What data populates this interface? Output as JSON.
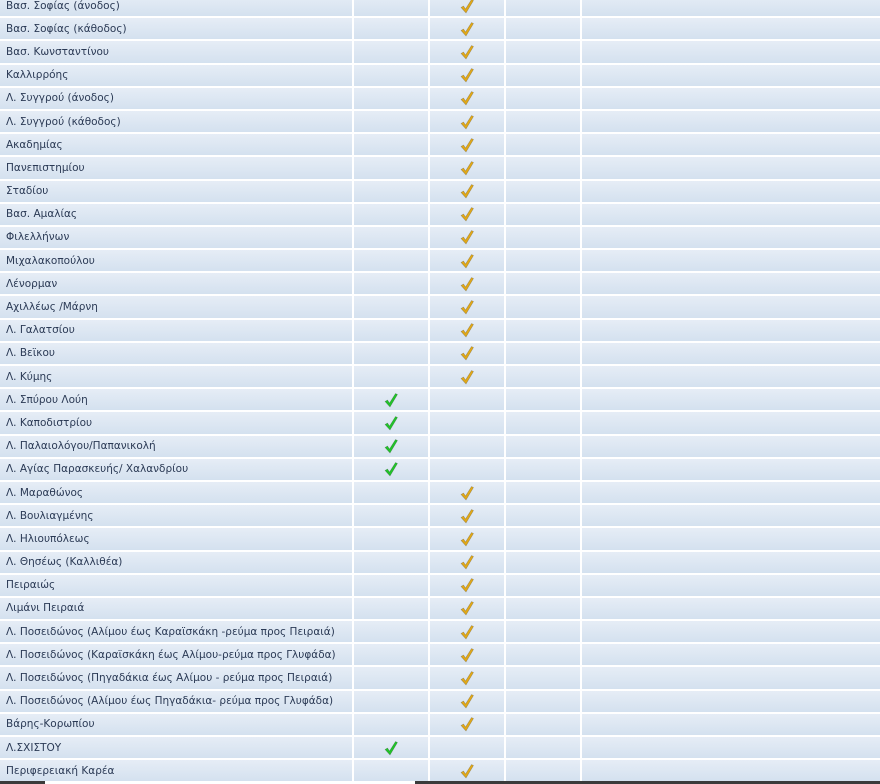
{
  "colors": {
    "green_check": "#22c32a",
    "yellow_check": "#e0a81a"
  },
  "rows": [
    {
      "name": "Βασ. Σοφίας (άνοδος)",
      "check": "yellow"
    },
    {
      "name": "Βασ. Σοφίας (κάθοδος)",
      "check": "yellow"
    },
    {
      "name": "Βασ. Κωνσταντίνου",
      "check": "yellow"
    },
    {
      "name": "Καλλιρρόης",
      "check": "yellow"
    },
    {
      "name": "Λ. Συγγρού (άνοδος)",
      "check": "yellow"
    },
    {
      "name": "Λ. Συγγρού (κάθοδος)",
      "check": "yellow"
    },
    {
      "name": "Ακαδημίας",
      "check": "yellow"
    },
    {
      "name": "Πανεπιστημίου",
      "check": "yellow"
    },
    {
      "name": "Σταδίου",
      "check": "yellow"
    },
    {
      "name": "Βασ. Αμαλίας",
      "check": "yellow"
    },
    {
      "name": "Φιλελλήνων",
      "check": "yellow"
    },
    {
      "name": "Μιχαλακοπούλου",
      "check": "yellow"
    },
    {
      "name": "Λένορμαν",
      "check": "yellow"
    },
    {
      "name": "Αχιλλέως /Μάρνη",
      "check": "yellow"
    },
    {
      "name": "Λ. Γαλατσίου",
      "check": "yellow"
    },
    {
      "name": "Λ. Βεϊκου",
      "check": "yellow"
    },
    {
      "name": "Λ. Κύμης",
      "check": "yellow"
    },
    {
      "name": "Λ. Σπύρου Λούη",
      "check": "green"
    },
    {
      "name": "Λ. Καποδιστρίου",
      "check": "green"
    },
    {
      "name": "Λ. Παλαιολόγου/Παπανικολή",
      "check": "green"
    },
    {
      "name": "Λ. Αγίας Παρασκευής/ Χαλανδρίου",
      "check": "green"
    },
    {
      "name": "Λ. Μαραθώνος",
      "check": "yellow"
    },
    {
      "name": "Λ. Βουλιαγμένης",
      "check": "yellow"
    },
    {
      "name": "Λ. Ηλιουπόλεως",
      "check": "yellow"
    },
    {
      "name": "Λ. Θησέως (Καλλιθέα)",
      "check": "yellow"
    },
    {
      "name": "Πειραιώς",
      "check": "yellow"
    },
    {
      "name": "Λιμάνι Πειραιά",
      "check": "yellow"
    },
    {
      "name": "Λ. Ποσειδώνος (Αλίμου έως Καραϊσκάκη -ρεύμα προς Πειραιά)",
      "check": "yellow"
    },
    {
      "name": "Λ. Ποσειδώνος (Καραϊσκάκη έως Αλίμου-ρεύμα προς Γλυφάδα)",
      "check": "yellow"
    },
    {
      "name": "Λ. Ποσειδώνος (Πηγαδάκια έως Αλίμου - ρεύμα προς Πειραιά)",
      "check": "yellow"
    },
    {
      "name": "Λ. Ποσειδώνος (Αλίμου έως Πηγαδάκια- ρεύμα προς Γλυφάδα)",
      "check": "yellow"
    },
    {
      "name": "Βάρης-Κορωπίου",
      "check": "yellow"
    },
    {
      "name": "Λ.ΣΧΙΣΤΟΥ",
      "check": "green"
    },
    {
      "name": "Περιφερειακή Καρέα",
      "check": "yellow"
    }
  ]
}
